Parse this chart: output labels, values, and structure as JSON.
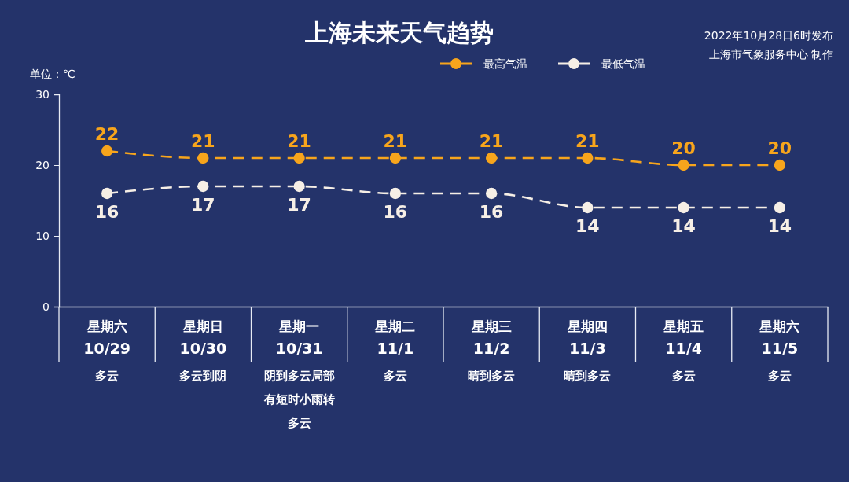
{
  "chart_data": {
    "type": "line",
    "title": "上海未来天气趋势",
    "ylabel": "单位：℃",
    "annotations": [
      "2022年10月28日6时发布",
      "上海市气象服务中心 制作"
    ],
    "categories": [
      "星期六\n10/29\n多云",
      "星期日\n10/30\n多云到阴",
      "星期一\n10/31\n阴到多云局部有短时小雨转多云",
      "星期二\n11/1\n多云",
      "星期三\n11/2\n晴到多云",
      "星期四\n11/3\n晴到多云",
      "星期五\n11/4\n多云",
      "星期六\n11/5\n多云"
    ],
    "series": [
      {
        "name": "最高气温",
        "color": "#f7a51c",
        "values": [
          22,
          21,
          21,
          21,
          21,
          21,
          20,
          20
        ]
      },
      {
        "name": "最低气温",
        "color": "#f6efe6",
        "values": [
          16,
          17,
          17,
          16,
          16,
          14,
          14,
          14
        ]
      }
    ],
    "ylim": [
      0,
      30
    ],
    "yticks": [
      0,
      10,
      20,
      30
    ],
    "legend": "top right",
    "marker": "circle",
    "line_style": "dashed",
    "data_labels": true
  }
}
